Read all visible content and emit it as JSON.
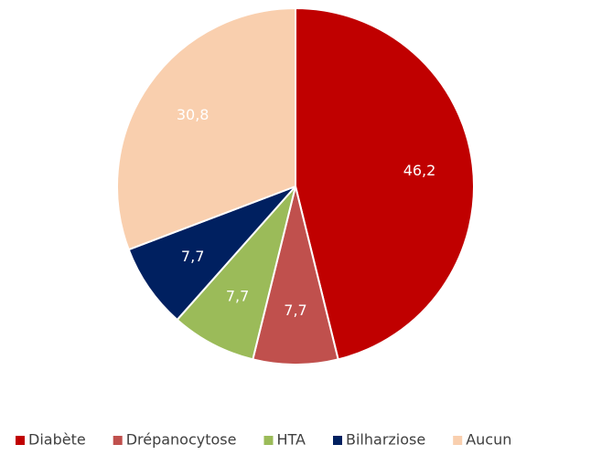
{
  "chart_data": {
    "type": "pie",
    "categories": [
      "Diabète",
      "Drépanocytose",
      "HTA",
      "Bilharziose",
      "Aucun"
    ],
    "values": [
      46.2,
      7.7,
      7.7,
      7.7,
      30.8
    ],
    "value_labels": [
      "46,2",
      "7,7",
      "7,7",
      "7,7",
      "30,8"
    ],
    "colors": [
      "#c00000",
      "#c0504d",
      "#9bbb59",
      "#002060",
      "#f9cfae"
    ],
    "legend": "bottom"
  }
}
